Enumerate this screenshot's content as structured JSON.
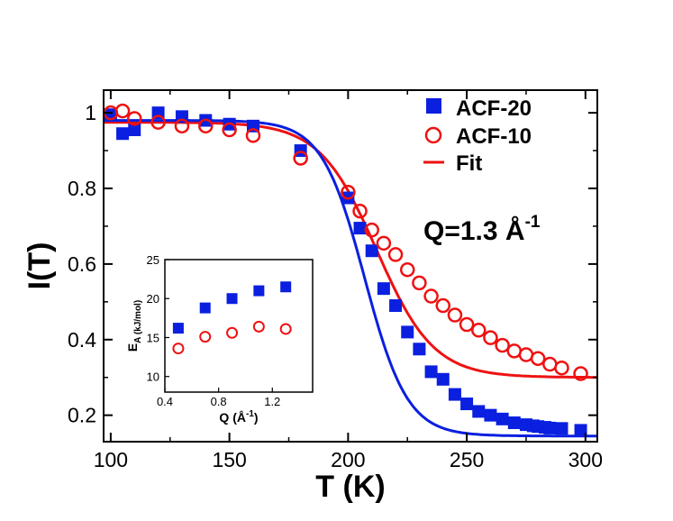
{
  "chart_data": [
    {
      "type": "scatter",
      "xlabel": "T (K)",
      "ylabel": "I(T)",
      "xlim": [
        97,
        305
      ],
      "ylim": [
        0.13,
        1.06
      ],
      "xticks": [
        100,
        150,
        200,
        250,
        300
      ],
      "yticks": [
        0.2,
        0.4,
        0.6,
        0.8,
        1
      ],
      "x_tick_labels": [
        "100",
        "150",
        "200",
        "250",
        "300"
      ],
      "y_tick_labels": [
        "0.2",
        "0.4",
        "0.6",
        "0.8",
        "1"
      ],
      "grid": false,
      "legend_position": "top-right",
      "annotation": {
        "text": "Q=1.3 Å",
        "superscript": "-1"
      },
      "series": [
        {
          "name": "ACF-20",
          "marker": "filled-square",
          "color": "#0a1fe0",
          "x": [
            100,
            105,
            110,
            120,
            130,
            140,
            150,
            160,
            180,
            200,
            205,
            210,
            215,
            220,
            225,
            230,
            235,
            240,
            245,
            250,
            255,
            260,
            265,
            270,
            275,
            278,
            280,
            283,
            285,
            290,
            298
          ],
          "y": [
            0.995,
            0.945,
            0.955,
            1.0,
            0.99,
            0.98,
            0.97,
            0.965,
            0.9,
            0.775,
            0.695,
            0.635,
            0.535,
            0.49,
            0.42,
            0.375,
            0.315,
            0.295,
            0.255,
            0.23,
            0.21,
            0.2,
            0.19,
            0.18,
            0.175,
            0.172,
            0.17,
            0.168,
            0.166,
            0.165,
            0.16
          ]
        },
        {
          "name": "ACF-10",
          "marker": "open-circle",
          "color": "#ee1111",
          "x": [
            100,
            105,
            110,
            120,
            130,
            140,
            150,
            160,
            180,
            200,
            205,
            210,
            215,
            220,
            225,
            230,
            235,
            240,
            245,
            250,
            255,
            260,
            265,
            270,
            275,
            280,
            285,
            290,
            298
          ],
          "y": [
            1.0,
            1.005,
            0.985,
            0.975,
            0.965,
            0.965,
            0.955,
            0.94,
            0.88,
            0.79,
            0.74,
            0.69,
            0.655,
            0.625,
            0.585,
            0.55,
            0.515,
            0.49,
            0.465,
            0.44,
            0.425,
            0.405,
            0.385,
            0.37,
            0.36,
            0.35,
            0.335,
            0.325,
            0.31
          ]
        },
        {
          "name": "Fit",
          "marker": "line",
          "color": "#ee1111",
          "curves": [
            {
              "color": "#ee1111",
              "top": 0.975,
              "bottom": 0.3,
              "midpoint": 212,
              "width": 12
            },
            {
              "color": "#0a1fe0",
              "top": 0.98,
              "bottom": 0.145,
              "midpoint": 207,
              "width": 9
            }
          ]
        }
      ]
    },
    {
      "type": "scatter",
      "xlabel": "Q (Å",
      "xlabel_sup": "-1",
      "xlabel_end": ")",
      "ylabel": "E",
      "ylabel_sub": "A (kJ/mol)",
      "xlim": [
        0.4,
        1.5
      ],
      "ylim": [
        8,
        25
      ],
      "xticks": [
        0.4,
        0.8,
        1.2
      ],
      "yticks": [
        10,
        15,
        20,
        25
      ],
      "x_tick_labels": [
        "0.4",
        "0.8",
        "1.2"
      ],
      "y_tick_labels": [
        "10",
        "15",
        "20",
        "25"
      ],
      "series": [
        {
          "marker": "filled-square",
          "color": "#0a1fe0",
          "x": [
            0.5,
            0.7,
            0.9,
            1.1,
            1.3
          ],
          "y": [
            16.2,
            18.8,
            20.0,
            21.0,
            21.5
          ]
        },
        {
          "marker": "open-circle",
          "color": "#ee1111",
          "x": [
            0.5,
            0.7,
            0.9,
            1.1,
            1.3
          ],
          "y": [
            13.6,
            15.1,
            15.6,
            16.4,
            16.1
          ]
        }
      ]
    }
  ]
}
